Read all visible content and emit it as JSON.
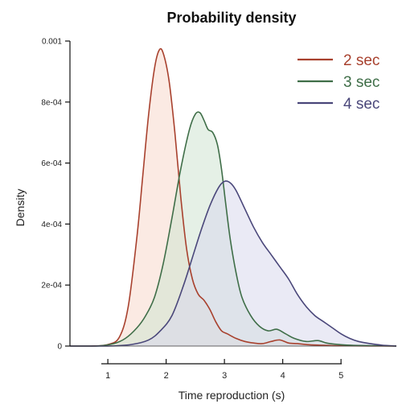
{
  "chart_data": {
    "type": "area",
    "title": "Probability density",
    "xlabel": "Time reproduction (s)",
    "ylabel": "Density",
    "xlim": [
      0.35,
      5.95
    ],
    "ylim": [
      0,
      0.001
    ],
    "x_ticks": [
      1,
      2,
      3,
      4,
      5
    ],
    "x_tick_labels": [
      "1",
      "2",
      "3",
      "4",
      "5"
    ],
    "y_ticks": [
      0,
      0.0002,
      0.0004,
      0.0006,
      0.0008,
      0.001
    ],
    "y_tick_labels": [
      "0",
      "2e-04",
      "4e-04",
      "6e-04",
      "8e-04",
      "0.001"
    ],
    "grid": false,
    "legend_position": "top-right",
    "series": [
      {
        "name": "2 sec",
        "line_color": "#a8412e",
        "fill_color": "#f7d9cc",
        "x": [
          0.35,
          0.7,
          1.0,
          1.2,
          1.35,
          1.5,
          1.6,
          1.7,
          1.8,
          1.88,
          1.95,
          2.05,
          2.15,
          2.25,
          2.35,
          2.45,
          2.55,
          2.65,
          2.75,
          2.85,
          2.95,
          3.05,
          3.2,
          3.35,
          3.5,
          3.65,
          3.8,
          3.95,
          4.1,
          4.25,
          4.4,
          4.6,
          4.8,
          5.0,
          5.95
        ],
        "y": [
          0,
          0.0,
          5e-06,
          3e-05,
          0.00013,
          0.00036,
          0.00056,
          0.00076,
          0.00091,
          0.00097,
          0.00096,
          0.00087,
          0.0007,
          0.00049,
          0.00032,
          0.00022,
          0.00017,
          0.00015,
          0.00012,
          8e-05,
          5e-05,
          4e-05,
          2.5e-05,
          1.5e-05,
          1e-05,
          8e-06,
          1.5e-05,
          2e-05,
          1e-05,
          8e-06,
          5e-06,
          3e-06,
          2e-06,
          1e-06,
          0
        ]
      },
      {
        "name": "3 sec",
        "line_color": "#3f6e48",
        "fill_color": "#cfe3d2",
        "x": [
          0.35,
          0.8,
          1.1,
          1.3,
          1.5,
          1.65,
          1.8,
          1.95,
          2.1,
          2.25,
          2.4,
          2.5,
          2.58,
          2.65,
          2.72,
          2.8,
          2.88,
          2.95,
          3.02,
          3.1,
          3.2,
          3.3,
          3.45,
          3.6,
          3.75,
          3.9,
          4.05,
          4.2,
          4.4,
          4.6,
          4.75,
          4.9,
          5.1,
          5.3,
          5.95
        ],
        "y": [
          0,
          0.0,
          8e-06,
          2.5e-05,
          6e-05,
          0.0001,
          0.00016,
          0.00027,
          0.00042,
          0.00058,
          0.00071,
          0.00076,
          0.000765,
          0.00074,
          0.00071,
          0.0007,
          0.00066,
          0.00058,
          0.00047,
          0.00035,
          0.00024,
          0.00016,
          0.0001,
          6.5e-05,
          5e-05,
          5.5e-05,
          4e-05,
          2.5e-05,
          1.5e-05,
          1.8e-05,
          1e-05,
          6e-06,
          3e-06,
          2e-06,
          0
        ]
      },
      {
        "name": "4 sec",
        "line_color": "#4a477a",
        "fill_color": "#d9d8ec",
        "x": [
          0.35,
          1.0,
          1.4,
          1.7,
          1.9,
          2.1,
          2.3,
          2.45,
          2.6,
          2.75,
          2.9,
          3.0,
          3.1,
          3.2,
          3.35,
          3.5,
          3.65,
          3.8,
          3.95,
          4.1,
          4.25,
          4.4,
          4.55,
          4.7,
          4.85,
          5.0,
          5.15,
          5.3,
          5.5,
          5.7,
          5.95
        ],
        "y": [
          0,
          0.0,
          5e-06,
          2e-05,
          5e-05,
          0.0001,
          0.0002,
          0.00029,
          0.00038,
          0.00046,
          0.00052,
          0.00054,
          0.000535,
          0.00051,
          0.00045,
          0.00039,
          0.00034,
          0.0003,
          0.00026,
          0.00022,
          0.00017,
          0.00013,
          0.0001,
          8e-05,
          6e-05,
          4e-05,
          2.5e-05,
          1.5e-05,
          8e-06,
          3e-06,
          0
        ]
      }
    ]
  }
}
